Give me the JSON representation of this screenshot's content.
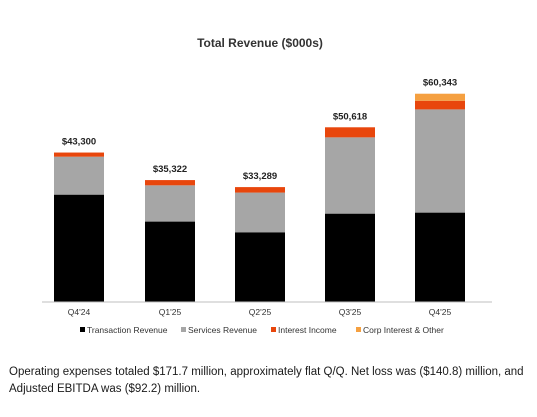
{
  "chart_data": {
    "type": "bar",
    "stacked": true,
    "title": "Total Revenue ($000s)",
    "xlabel": "",
    "ylabel": "",
    "categories": [
      "Q4'24",
      "Q1'25",
      "Q2'25",
      "Q3'25",
      "Q4'25"
    ],
    "totals": [
      43300,
      35322,
      33289,
      50618,
      60343
    ],
    "total_labels": [
      "$43,300",
      "$35,322",
      "$33,289",
      "$50,618",
      "$60,343"
    ],
    "ylim": [
      0,
      62000
    ],
    "grid": false,
    "legend_position": "bottom",
    "series": [
      {
        "name": "Transaction Revenue",
        "color": "#000000",
        "values": [
          31100,
          23300,
          20200,
          25600,
          25900
        ]
      },
      {
        "name": "Services Revenue",
        "color": "#a6a6a6",
        "values": [
          11000,
          10500,
          11500,
          22100,
          29900
        ]
      },
      {
        "name": "Interest Income",
        "color": "#e8460c",
        "values": [
          1200,
          1522,
          1589,
          2918,
          2500
        ]
      },
      {
        "name": "Corp Interest & Other",
        "color": "#f5a040",
        "values": [
          0,
          0,
          0,
          0,
          2043
        ]
      }
    ]
  },
  "caption": {
    "text": "Operating expenses totaled $171.7 million, approximately flat Q/Q. Net loss was ($140.8) million, and Adjusted EBITDA was ($92.2) million."
  }
}
